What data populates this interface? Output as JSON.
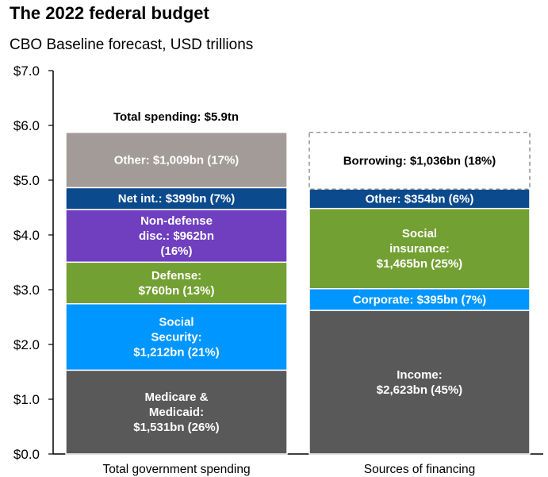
{
  "title": "The 2022 federal budget",
  "subtitle": "CBO Baseline forecast, USD trillions",
  "chart_data": {
    "type": "bar",
    "stacked": true,
    "ylim": [
      0,
      7
    ],
    "y_ticks": [
      "$0.0",
      "$1.0",
      "$2.0",
      "$3.0",
      "$4.0",
      "$5.0",
      "$6.0",
      "$7.0"
    ],
    "grid": false,
    "categories": [
      "Total government spending",
      "Sources of financing"
    ],
    "annotations": [
      "Total spending: $5.9tn"
    ],
    "bars": [
      {
        "category": "Total government spending",
        "segments": [
          {
            "label": [
              "Medicare &",
              "Medicaid:",
              "$1,531bn (26%)"
            ],
            "value": 1.531,
            "color": "#595959"
          },
          {
            "label": [
              "Social",
              "Security:",
              "$1,212bn (21%)"
            ],
            "value": 1.212,
            "color": "#0096ff"
          },
          {
            "label": [
              "Defense:",
              "$760bn (13%)"
            ],
            "value": 0.76,
            "color": "#73a033"
          },
          {
            "label": [
              "Non-defense",
              "disc.: $962bn",
              "(16%)"
            ],
            "value": 0.962,
            "color": "#6f3fc0"
          },
          {
            "label": [
              "Net int.: $399bn (7%)"
            ],
            "value": 0.399,
            "color": "#0b4a8c"
          },
          {
            "label": [
              "Other: $1,009bn (17%)"
            ],
            "value": 1.009,
            "color": "#a39b97"
          }
        ]
      },
      {
        "category": "Sources of financing",
        "segments": [
          {
            "label": [
              "Income:",
              "$2,623bn (45%)"
            ],
            "value": 2.623,
            "color": "#595959"
          },
          {
            "label": [
              "Corporate: $395bn (7%)"
            ],
            "value": 0.395,
            "color": "#0096ff"
          },
          {
            "label": [
              "Social",
              "insurance:",
              "$1,465bn (25%)"
            ],
            "value": 1.465,
            "color": "#73a033"
          },
          {
            "label": [
              "Other: $354bn (6%)"
            ],
            "value": 0.354,
            "color": "#0b4a8c"
          },
          {
            "label": [
              "Borrowing: $1,036bn (18%)"
            ],
            "value": 1.036,
            "color": "#ffffff",
            "style": "dashed"
          }
        ]
      }
    ]
  }
}
